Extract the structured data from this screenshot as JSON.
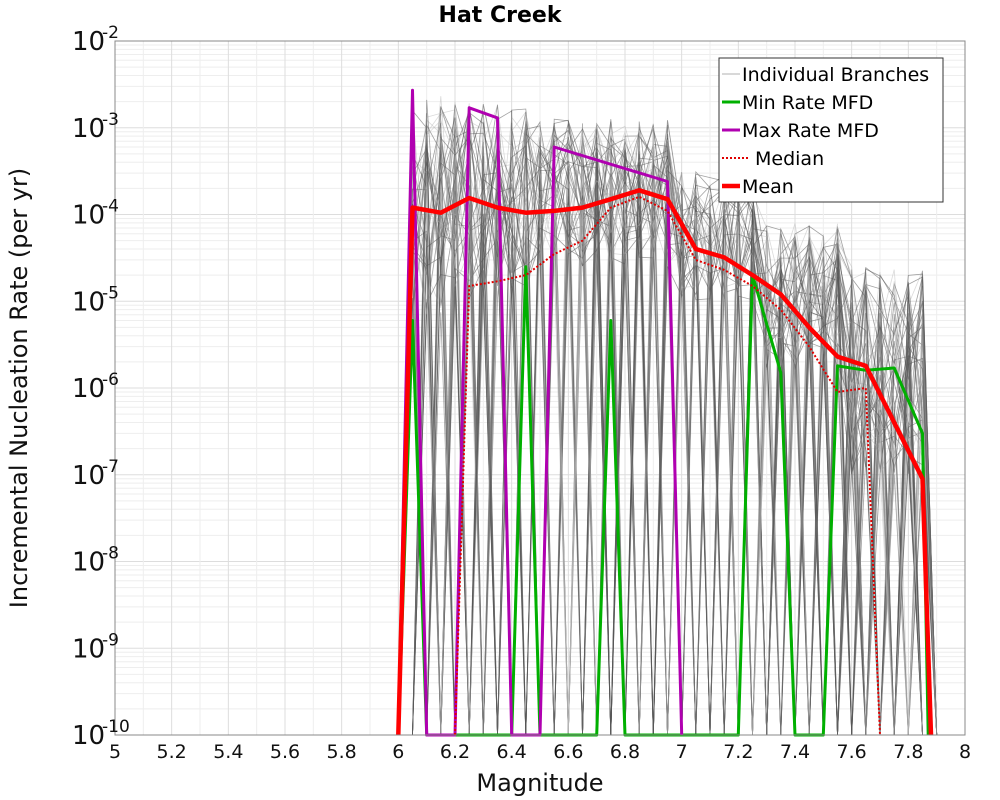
{
  "chart_data": {
    "type": "line",
    "title": "Hat Creek",
    "xlabel": "Magnitude",
    "ylabel": "Incremental Nucleation Rate (per yr)",
    "xlim": [
      5,
      8
    ],
    "ylim": [
      1e-10,
      0.01
    ],
    "yscale": "log",
    "grid": true,
    "legend_position": "top-right",
    "x_ticks": [
      "5",
      "5.2",
      "5.4",
      "5.6",
      "5.8",
      "6",
      "6.2",
      "6.4",
      "6.6",
      "6.8",
      "7",
      "7.2",
      "7.4",
      "7.6",
      "7.8",
      "8"
    ],
    "y_ticks": [
      {
        "base": "10",
        "exp": "-10"
      },
      {
        "base": "10",
        "exp": "-9"
      },
      {
        "base": "10",
        "exp": "-8"
      },
      {
        "base": "10",
        "exp": "-7"
      },
      {
        "base": "10",
        "exp": "-6"
      },
      {
        "base": "10",
        "exp": "-5"
      },
      {
        "base": "10",
        "exp": "-4"
      },
      {
        "base": "10",
        "exp": "-3"
      },
      {
        "base": "10",
        "exp": "-2"
      }
    ],
    "legend": [
      {
        "label": "Individual Branches",
        "color": "#b0b0b0",
        "style": "thin"
      },
      {
        "label": "Min Rate MFD",
        "color": "#00b000",
        "style": "solid"
      },
      {
        "label": "Max Rate MFD",
        "color": "#b000b0",
        "style": "solid"
      },
      {
        "label": "Median",
        "color": "#e00000",
        "style": "dotted"
      },
      {
        "label": "Mean",
        "color": "#ff0000",
        "style": "thick"
      }
    ],
    "series": [
      {
        "name": "Min Rate MFD",
        "color": "#00b000",
        "points": [
          [
            6.0,
            1e-10
          ],
          [
            6.05,
            6e-06
          ],
          [
            6.1,
            1e-10
          ],
          [
            6.2,
            1e-10
          ],
          [
            6.25,
            1e-10
          ],
          [
            6.3,
            1e-10
          ],
          [
            6.35,
            1e-10
          ],
          [
            6.4,
            1e-10
          ],
          [
            6.45,
            2.5e-05
          ],
          [
            6.5,
            1e-10
          ],
          [
            6.6,
            1e-10
          ],
          [
            6.7,
            1e-10
          ],
          [
            6.75,
            6e-06
          ],
          [
            6.8,
            1e-10
          ],
          [
            7.2,
            1e-10
          ],
          [
            7.25,
            2e-05
          ],
          [
            7.35,
            1.5e-06
          ],
          [
            7.4,
            1e-10
          ],
          [
            7.5,
            1e-10
          ],
          [
            7.55,
            1.8e-06
          ],
          [
            7.65,
            1.6e-06
          ],
          [
            7.75,
            1.7e-06
          ],
          [
            7.85,
            3e-07
          ],
          [
            7.87,
            1e-10
          ]
        ]
      },
      {
        "name": "Max Rate MFD",
        "color": "#b000b0",
        "points": [
          [
            6.0,
            1e-10
          ],
          [
            6.05,
            0.0027
          ],
          [
            6.1,
            1e-10
          ],
          [
            6.2,
            1e-10
          ],
          [
            6.25,
            0.0017
          ],
          [
            6.35,
            0.0013
          ],
          [
            6.4,
            1e-10
          ],
          [
            6.5,
            1e-10
          ],
          [
            6.55,
            0.0006
          ],
          [
            6.95,
            0.00024
          ],
          [
            7.0,
            1e-10
          ]
        ]
      },
      {
        "name": "Median",
        "color": "#e00000",
        "points": [
          [
            6.2,
            1e-10
          ],
          [
            6.25,
            1.5e-05
          ],
          [
            6.35,
            1.7e-05
          ],
          [
            6.45,
            2e-05
          ],
          [
            6.55,
            3.5e-05
          ],
          [
            6.65,
            5e-05
          ],
          [
            6.75,
            0.00012
          ],
          [
            6.85,
            0.00016
          ],
          [
            6.95,
            0.00011
          ],
          [
            7.05,
            3e-05
          ],
          [
            7.15,
            2.3e-05
          ],
          [
            7.25,
            1.5e-05
          ],
          [
            7.35,
            8e-06
          ],
          [
            7.45,
            3e-06
          ],
          [
            7.55,
            9e-07
          ],
          [
            7.65,
            1e-06
          ],
          [
            7.7,
            1e-10
          ]
        ]
      },
      {
        "name": "Mean",
        "color": "#ff0000",
        "points": [
          [
            6.0,
            1e-10
          ],
          [
            6.05,
            0.00012
          ],
          [
            6.15,
            0.000105
          ],
          [
            6.25,
            0.000155
          ],
          [
            6.35,
            0.00012
          ],
          [
            6.45,
            0.000105
          ],
          [
            6.55,
            0.00011
          ],
          [
            6.65,
            0.00012
          ],
          [
            6.75,
            0.00015
          ],
          [
            6.85,
            0.00019
          ],
          [
            6.95,
            0.00015
          ],
          [
            7.05,
            4e-05
          ],
          [
            7.15,
            3.2e-05
          ],
          [
            7.25,
            2e-05
          ],
          [
            7.35,
            1.2e-05
          ],
          [
            7.45,
            5e-06
          ],
          [
            7.55,
            2.3e-06
          ],
          [
            7.65,
            1.8e-06
          ],
          [
            7.75,
            4e-07
          ],
          [
            7.85,
            9e-08
          ],
          [
            7.88,
            1e-10
          ]
        ]
      }
    ]
  }
}
